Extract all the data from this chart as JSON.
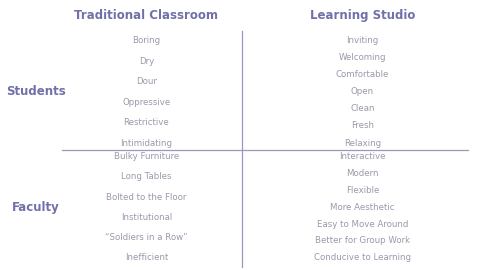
{
  "title_left": "Traditional Classroom",
  "title_right": "Learning Studio",
  "label_students": "Students",
  "label_faculty": "Faculty",
  "students_traditional": [
    "Boring",
    "Dry",
    "Dour",
    "Oppressive",
    "Restrictive",
    "Intimidating"
  ],
  "students_studio": [
    "Inviting",
    "Welcoming",
    "Comfortable",
    "Open",
    "Clean",
    "Fresh",
    "Relaxing"
  ],
  "faculty_traditional": [
    "Bulky Furniture",
    "Long Tables",
    "Bolted to the Floor",
    "Institutional",
    "“Soldiers in a Row”",
    "Inefficient"
  ],
  "faculty_studio": [
    "Interactive",
    "Modern",
    "Flexible",
    "More Aesthetic",
    "Easy to Move Around",
    "Better for Group Work",
    "Conducive to Learning"
  ],
  "header_color": "#7070aa",
  "label_color": "#7070aa",
  "text_color": "#999aab",
  "line_color": "#9999bb",
  "bg_color": "#ffffff",
  "title_fontsize": 8.5,
  "label_fontsize": 8.5,
  "item_fontsize": 6.2
}
